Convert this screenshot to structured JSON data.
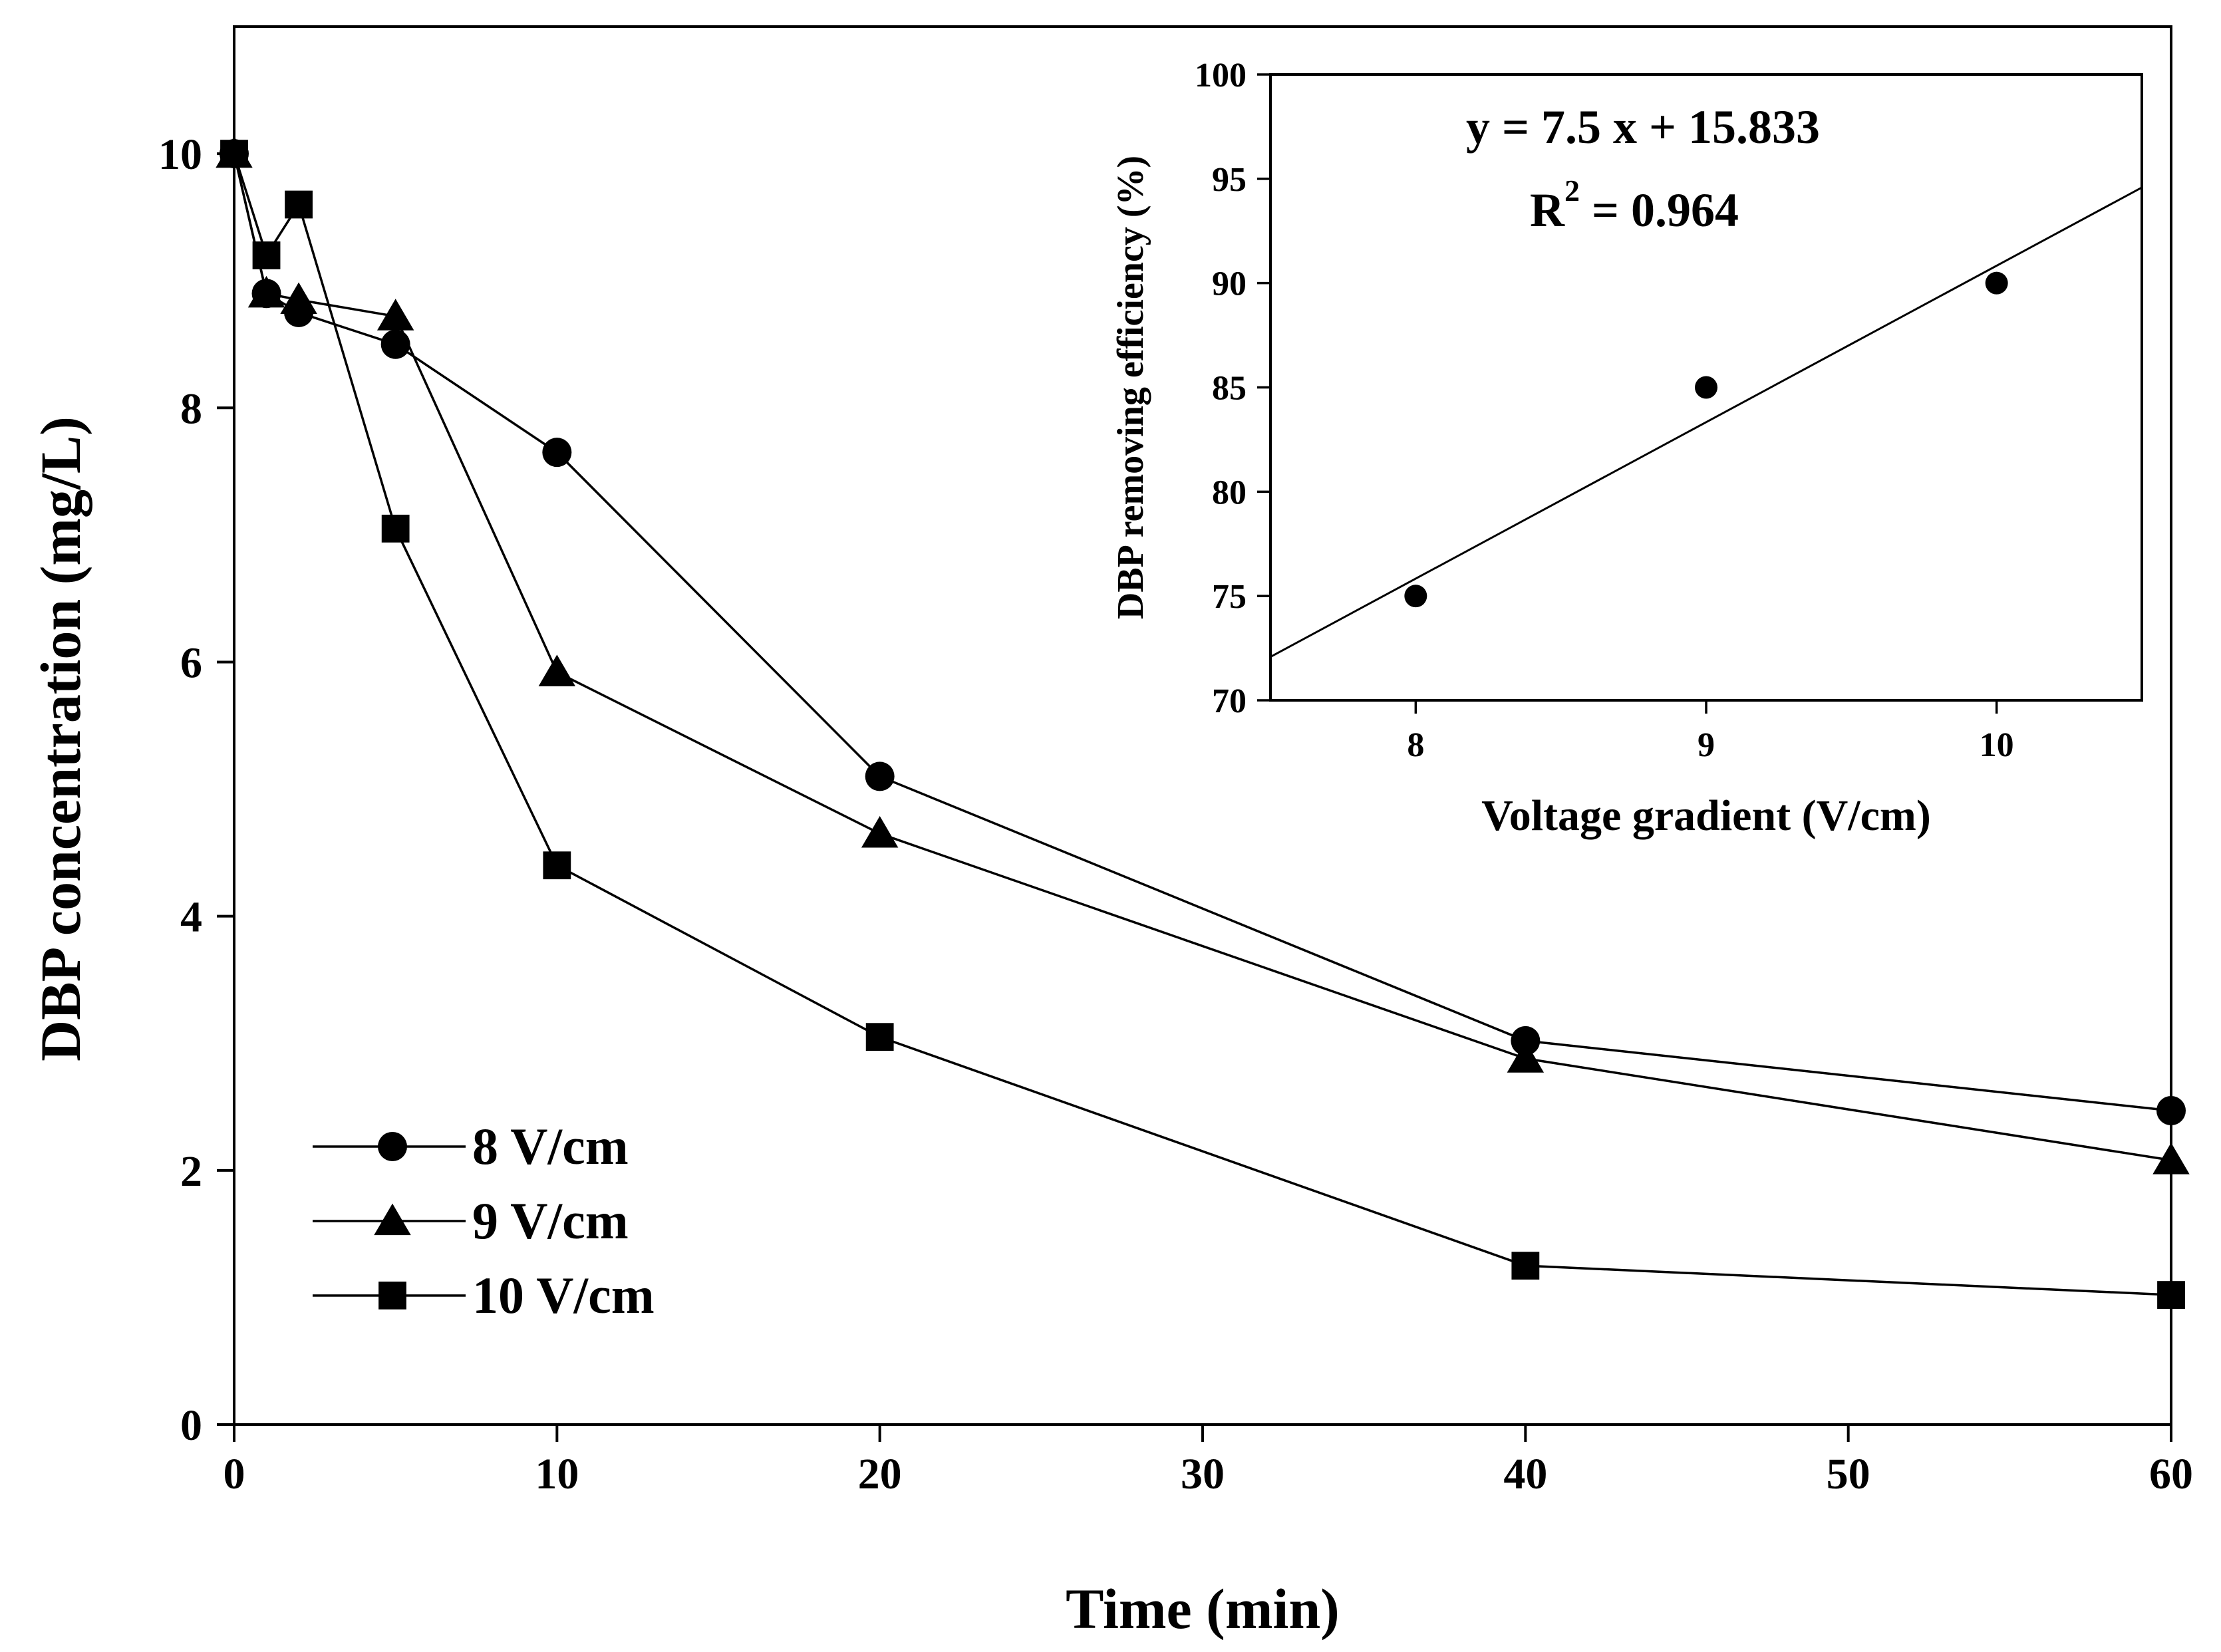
{
  "chart_data": [
    {
      "type": "line",
      "title": "",
      "xlabel": "Time (min)",
      "ylabel": "DBP concentration (mg/L)",
      "xlim": [
        0,
        60
      ],
      "ylim": [
        0,
        11
      ],
      "xticks": [
        0,
        10,
        20,
        30,
        40,
        50,
        60
      ],
      "yticks": [
        0,
        2,
        4,
        6,
        8,
        10
      ],
      "x": [
        0,
        1,
        2,
        5,
        10,
        20,
        40,
        60
      ],
      "legend_position": "bottom-left",
      "series": [
        {
          "name": "8 V/cm",
          "marker": "circle",
          "values": [
            10.0,
            8.9,
            8.75,
            8.5,
            7.65,
            5.1,
            3.02,
            2.47
          ]
        },
        {
          "name": "9 V/cm",
          "marker": "triangle",
          "values": [
            10.0,
            8.9,
            8.85,
            8.72,
            5.92,
            4.65,
            2.88,
            2.08
          ]
        },
        {
          "name": "10 V/cm",
          "marker": "square",
          "values": [
            10.0,
            9.2,
            9.6,
            7.05,
            4.4,
            3.05,
            1.25,
            1.02
          ]
        }
      ]
    },
    {
      "type": "scatter",
      "title": "",
      "xlabel": "Voltage gradient (V/cm)",
      "ylabel": "DBP removing efficiency (%)",
      "xlim": [
        7.5,
        10.5
      ],
      "ylim": [
        70,
        100
      ],
      "xticks": [
        8,
        9,
        10
      ],
      "yticks": [
        70,
        75,
        80,
        85,
        90,
        95,
        100
      ],
      "x": [
        8,
        9,
        10
      ],
      "y": [
        75,
        85,
        90
      ],
      "fit": {
        "slope": 7.5,
        "intercept": 15.833
      },
      "equation": "y = 7.5 x + 15.833",
      "r2_label": "R",
      "r2_exp": "2",
      "r2_value": " = 0.964"
    }
  ]
}
